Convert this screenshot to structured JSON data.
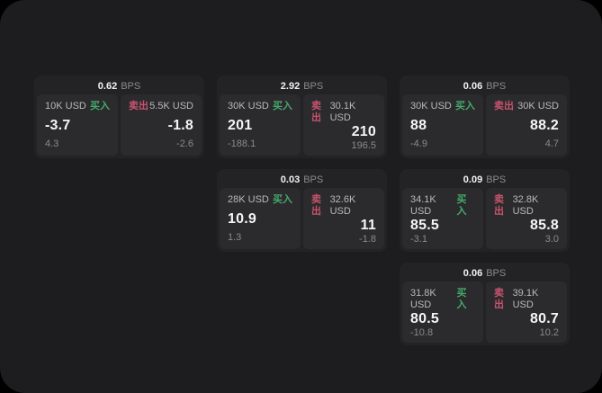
{
  "labels": {
    "bps_unit": "BPS",
    "buy": "买入",
    "sell": "卖出"
  },
  "colors": {
    "background_outside": "#000000",
    "panel_background": "#1d1d1f",
    "card_background": "#232325",
    "subpanel_background": "#2b2b2d",
    "buy_green": "#46a96c",
    "sell_pink": "#c7536e",
    "primary_text": "#f5f5f5",
    "muted_text": "#8a8a8a"
  },
  "cards": [
    {
      "bps": "0.62",
      "buy": {
        "notional": "10K USD",
        "price": "-3.7",
        "delta": "4.3"
      },
      "sell": {
        "notional": "5.5K USD",
        "price": "-1.8",
        "delta": "-2.6"
      }
    },
    {
      "bps": "2.92",
      "buy": {
        "notional": "30K USD",
        "price": "201",
        "delta": "-188.1"
      },
      "sell": {
        "notional": "30.1K USD",
        "price": "210",
        "delta": "196.5"
      }
    },
    {
      "bps": "0.06",
      "buy": {
        "notional": "30K USD",
        "price": "88",
        "delta": "-4.9"
      },
      "sell": {
        "notional": "30K USD",
        "price": "88.2",
        "delta": "4.7"
      }
    },
    {
      "bps": "0.03",
      "buy": {
        "notional": "28K USD",
        "price": "10.9",
        "delta": "1.3"
      },
      "sell": {
        "notional": "32.6K USD",
        "price": "11",
        "delta": "-1.8"
      }
    },
    {
      "bps": "0.09",
      "buy": {
        "notional": "34.1K USD",
        "price": "85.5",
        "delta": "-3.1"
      },
      "sell": {
        "notional": "32.8K USD",
        "price": "85.8",
        "delta": "3.0"
      }
    },
    {
      "bps": "0.06",
      "buy": {
        "notional": "31.8K USD",
        "price": "80.5",
        "delta": "-10.8"
      },
      "sell": {
        "notional": "39.1K USD",
        "price": "80.7",
        "delta": "10.2"
      }
    }
  ]
}
